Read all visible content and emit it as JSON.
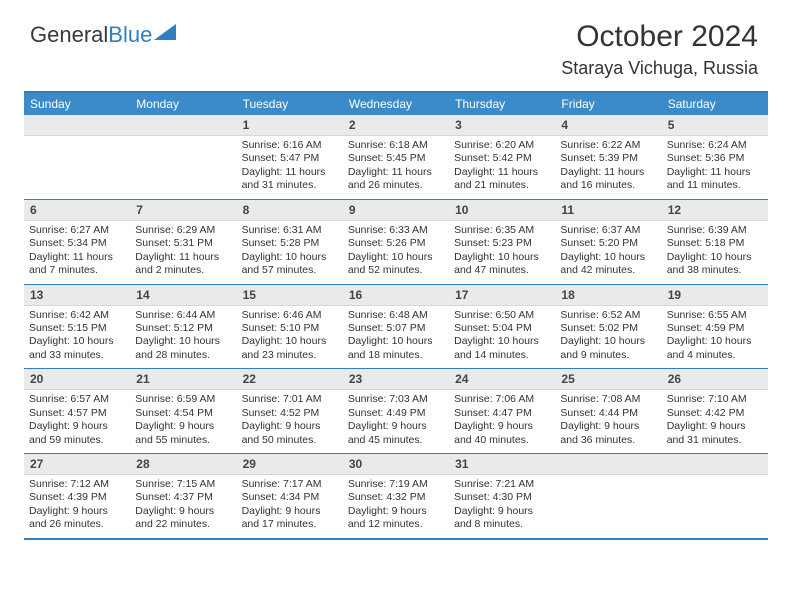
{
  "brand": {
    "part1": "General",
    "part2": "Blue"
  },
  "title": "October 2024",
  "location": "Staraya Vichuga, Russia",
  "colors": {
    "header_bg": "#3b8bc9",
    "header_text": "#ffffff",
    "rule": "#2f7fc1",
    "daynum_bg": "#e9eaeb",
    "text": "#333333"
  },
  "days_of_week": [
    "Sunday",
    "Monday",
    "Tuesday",
    "Wednesday",
    "Thursday",
    "Friday",
    "Saturday"
  ],
  "weeks": [
    [
      {
        "n": "",
        "sr": "",
        "ss": "",
        "dl": ""
      },
      {
        "n": "",
        "sr": "",
        "ss": "",
        "dl": ""
      },
      {
        "n": "1",
        "sr": "6:16 AM",
        "ss": "5:47 PM",
        "dl": "11 hours and 31 minutes."
      },
      {
        "n": "2",
        "sr": "6:18 AM",
        "ss": "5:45 PM",
        "dl": "11 hours and 26 minutes."
      },
      {
        "n": "3",
        "sr": "6:20 AM",
        "ss": "5:42 PM",
        "dl": "11 hours and 21 minutes."
      },
      {
        "n": "4",
        "sr": "6:22 AM",
        "ss": "5:39 PM",
        "dl": "11 hours and 16 minutes."
      },
      {
        "n": "5",
        "sr": "6:24 AM",
        "ss": "5:36 PM",
        "dl": "11 hours and 11 minutes."
      }
    ],
    [
      {
        "n": "6",
        "sr": "6:27 AM",
        "ss": "5:34 PM",
        "dl": "11 hours and 7 minutes."
      },
      {
        "n": "7",
        "sr": "6:29 AM",
        "ss": "5:31 PM",
        "dl": "11 hours and 2 minutes."
      },
      {
        "n": "8",
        "sr": "6:31 AM",
        "ss": "5:28 PM",
        "dl": "10 hours and 57 minutes."
      },
      {
        "n": "9",
        "sr": "6:33 AM",
        "ss": "5:26 PM",
        "dl": "10 hours and 52 minutes."
      },
      {
        "n": "10",
        "sr": "6:35 AM",
        "ss": "5:23 PM",
        "dl": "10 hours and 47 minutes."
      },
      {
        "n": "11",
        "sr": "6:37 AM",
        "ss": "5:20 PM",
        "dl": "10 hours and 42 minutes."
      },
      {
        "n": "12",
        "sr": "6:39 AM",
        "ss": "5:18 PM",
        "dl": "10 hours and 38 minutes."
      }
    ],
    [
      {
        "n": "13",
        "sr": "6:42 AM",
        "ss": "5:15 PM",
        "dl": "10 hours and 33 minutes."
      },
      {
        "n": "14",
        "sr": "6:44 AM",
        "ss": "5:12 PM",
        "dl": "10 hours and 28 minutes."
      },
      {
        "n": "15",
        "sr": "6:46 AM",
        "ss": "5:10 PM",
        "dl": "10 hours and 23 minutes."
      },
      {
        "n": "16",
        "sr": "6:48 AM",
        "ss": "5:07 PM",
        "dl": "10 hours and 18 minutes."
      },
      {
        "n": "17",
        "sr": "6:50 AM",
        "ss": "5:04 PM",
        "dl": "10 hours and 14 minutes."
      },
      {
        "n": "18",
        "sr": "6:52 AM",
        "ss": "5:02 PM",
        "dl": "10 hours and 9 minutes."
      },
      {
        "n": "19",
        "sr": "6:55 AM",
        "ss": "4:59 PM",
        "dl": "10 hours and 4 minutes."
      }
    ],
    [
      {
        "n": "20",
        "sr": "6:57 AM",
        "ss": "4:57 PM",
        "dl": "9 hours and 59 minutes."
      },
      {
        "n": "21",
        "sr": "6:59 AM",
        "ss": "4:54 PM",
        "dl": "9 hours and 55 minutes."
      },
      {
        "n": "22",
        "sr": "7:01 AM",
        "ss": "4:52 PM",
        "dl": "9 hours and 50 minutes."
      },
      {
        "n": "23",
        "sr": "7:03 AM",
        "ss": "4:49 PM",
        "dl": "9 hours and 45 minutes."
      },
      {
        "n": "24",
        "sr": "7:06 AM",
        "ss": "4:47 PM",
        "dl": "9 hours and 40 minutes."
      },
      {
        "n": "25",
        "sr": "7:08 AM",
        "ss": "4:44 PM",
        "dl": "9 hours and 36 minutes."
      },
      {
        "n": "26",
        "sr": "7:10 AM",
        "ss": "4:42 PM",
        "dl": "9 hours and 31 minutes."
      }
    ],
    [
      {
        "n": "27",
        "sr": "7:12 AM",
        "ss": "4:39 PM",
        "dl": "9 hours and 26 minutes."
      },
      {
        "n": "28",
        "sr": "7:15 AM",
        "ss": "4:37 PM",
        "dl": "9 hours and 22 minutes."
      },
      {
        "n": "29",
        "sr": "7:17 AM",
        "ss": "4:34 PM",
        "dl": "9 hours and 17 minutes."
      },
      {
        "n": "30",
        "sr": "7:19 AM",
        "ss": "4:32 PM",
        "dl": "9 hours and 12 minutes."
      },
      {
        "n": "31",
        "sr": "7:21 AM",
        "ss": "4:30 PM",
        "dl": "9 hours and 8 minutes."
      },
      {
        "n": "",
        "sr": "",
        "ss": "",
        "dl": ""
      },
      {
        "n": "",
        "sr": "",
        "ss": "",
        "dl": ""
      }
    ]
  ],
  "labels": {
    "sunrise": "Sunrise: ",
    "sunset": "Sunset: ",
    "daylight": "Daylight: "
  }
}
